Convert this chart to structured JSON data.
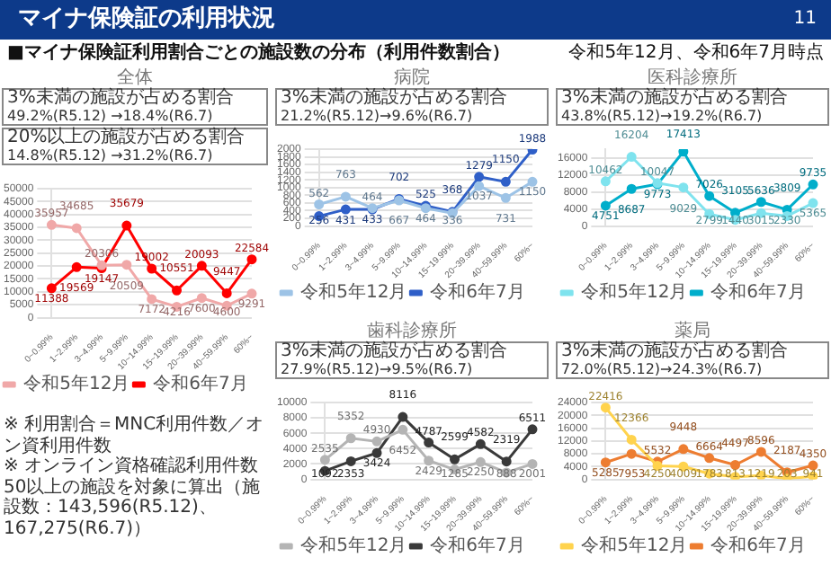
{
  "chart_data": [
    {
      "type": "line",
      "title": "全体",
      "categories": [
        "0~0.99%",
        "1~2.99%",
        "3~4.99%",
        "5~9.99%",
        "10~14.99%",
        "15~19.99%",
        "20~39.99%",
        "40~59.99%",
        "60%~"
      ],
      "series": [
        {
          "name": "令和5年12月",
          "color": "#f0a8a8",
          "values": [
            35957,
            34685,
            20306,
            20509,
            7172,
            4216,
            7600,
            4600,
            9291
          ]
        },
        {
          "name": "令和6年7月",
          "color": "#ff0000",
          "values": [
            11388,
            19569,
            19147,
            35679,
            19002,
            10551,
            20093,
            9447,
            22584
          ]
        }
      ],
      "ylim": [
        0,
        50000
      ],
      "yticks": [
        0,
        5000,
        10000,
        15000,
        20000,
        25000,
        30000,
        35000,
        40000,
        45000,
        50000
      ],
      "grid": "y",
      "legend": "bottom",
      "marker": "circle",
      "line_style": "solid",
      "data_labels": true,
      "annotations": [
        "マイナ保険証の利用状況",
        "■マイナ保険証利用割合ごとの施設数の分布（利用件数割合）",
        "令和5年12月、令和6年7月時点",
        "※ 利用割合＝MNC利用件数／オン資利用件数",
        "※ オンライン資格確認利用件数50以上の施設を対象に算出（施設数：143,596(R5.12)、167,275(R6.7)）",
        "11",
        "3%未満の施設が占める割合\n49.2%(R5.12) →18.4%(R6.7)",
        "20%以上の施設が占める割合\n14.8%(R5.12) →31.2%(R6.7)"
      ]
    },
    {
      "type": "line",
      "title": "病院",
      "categories": [
        "0~0.99%",
        "1~2.99%",
        "3~4.99%",
        "5~9.99%",
        "10~14.99%",
        "15~19.99%",
        "20~39.99%",
        "40~59.99%",
        "60%~"
      ],
      "series": [
        {
          "name": "令和5年12月",
          "color": "#9dc3e6",
          "values": [
            562,
            763,
            464,
            667,
            464,
            336,
            1037,
            731,
            1150
          ]
        },
        {
          "name": "令和6年7月",
          "color": "#2f5fc8",
          "values": [
            256,
            431,
            433,
            702,
            525,
            368,
            1279,
            1150,
            1988
          ]
        }
      ],
      "ylim": [
        0,
        2000
      ],
      "yticks": [
        0,
        200,
        400,
        600,
        800,
        1000,
        1200,
        1400,
        1600,
        1800,
        2000
      ],
      "grid": "y",
      "legend": "bottom",
      "marker": "circle",
      "line_style": "solid",
      "data_labels": true,
      "annotations": [
        "3%未満の施設が占める割合\n21.2%(R5.12)→9.6%(R6.7)"
      ]
    },
    {
      "type": "line",
      "title": "医科診療所",
      "categories": [
        "0~0.99%",
        "1~2.99%",
        "3~4.99%",
        "5~9.99%",
        "10~14.99%",
        "15~19.99%",
        "20~39.99%",
        "40~59.99%",
        "60%~"
      ],
      "series": [
        {
          "name": "令和5年12月",
          "color": "#7fe3ee",
          "values": [
            10462,
            16204,
            10047,
            9029,
            2799,
            1440,
            3015,
            2330,
            5365
          ]
        },
        {
          "name": "令和6年7月",
          "color": "#00aecb",
          "values": [
            4751,
            8687,
            9773,
            17413,
            7026,
            3105,
            5636,
            3809,
            9735
          ]
        }
      ],
      "ylim": [
        0,
        18000
      ],
      "yticks": [
        0,
        4000,
        8000,
        12000,
        16000
      ],
      "grid": "y",
      "legend": "bottom",
      "marker": "circle",
      "line_style": "solid",
      "data_labels": true,
      "annotations": [
        "3%未満の施設が占める割合\n43.8%(R5.12)→19.2%(R6.7)"
      ]
    },
    {
      "type": "line",
      "title": "歯科診療所",
      "categories": [
        "0~0.99%",
        "1~2.99%",
        "3~4.99%",
        "5~9.99%",
        "10~14.99%",
        "15~19.99%",
        "20~39.99%",
        "40~59.99%",
        "60%~"
      ],
      "series": [
        {
          "name": "令和5年12月",
          "color": "#b4b4b4",
          "values": [
            2535,
            5352,
            4930,
            6452,
            2429,
            1285,
            2250,
            888,
            2001
          ]
        },
        {
          "name": "令和6年7月",
          "color": "#3a3a3a",
          "values": [
            1092,
            2353,
            3424,
            8116,
            4787,
            2599,
            4582,
            2319,
            6511
          ]
        }
      ],
      "ylim": [
        0,
        10000
      ],
      "yticks": [
        0,
        2000,
        4000,
        6000,
        8000,
        10000
      ],
      "grid": "y",
      "legend": "bottom",
      "marker": "circle",
      "line_style": "solid",
      "data_labels": true,
      "annotations": [
        "3%未満の施設が占める割合\n27.9%(R5.12)→9.5%(R6.7)"
      ]
    },
    {
      "type": "line",
      "title": "薬局",
      "categories": [
        "0~0.99%",
        "1~2.99%",
        "3~4.99%",
        "5~9.99%",
        "10~14.99%",
        "15~19.99%",
        "20~39.99%",
        "40~59.99%",
        "60%~"
      ],
      "series": [
        {
          "name": "令和5年12月",
          "color": "#ffd34d",
          "values": [
            22416,
            12366,
            4250,
            4009,
            1783,
            813,
            1219,
            203,
            941
          ]
        },
        {
          "name": "令和6年7月",
          "color": "#ed7d31",
          "values": [
            5285,
            7953,
            5532,
            9448,
            6664,
            4497,
            8596,
            2187,
            4350
          ]
        }
      ],
      "ylim": [
        0,
        24000
      ],
      "yticks": [
        0,
        4000,
        8000,
        12000,
        16000,
        20000,
        24000
      ],
      "grid": "y",
      "legend": "bottom",
      "marker": "circle",
      "line_style": "solid",
      "data_labels": true,
      "annotations": [
        "3%未満の施設が占める割合\n72.0%(R5.12)→24.3%(R6.7)"
      ]
    }
  ]
}
